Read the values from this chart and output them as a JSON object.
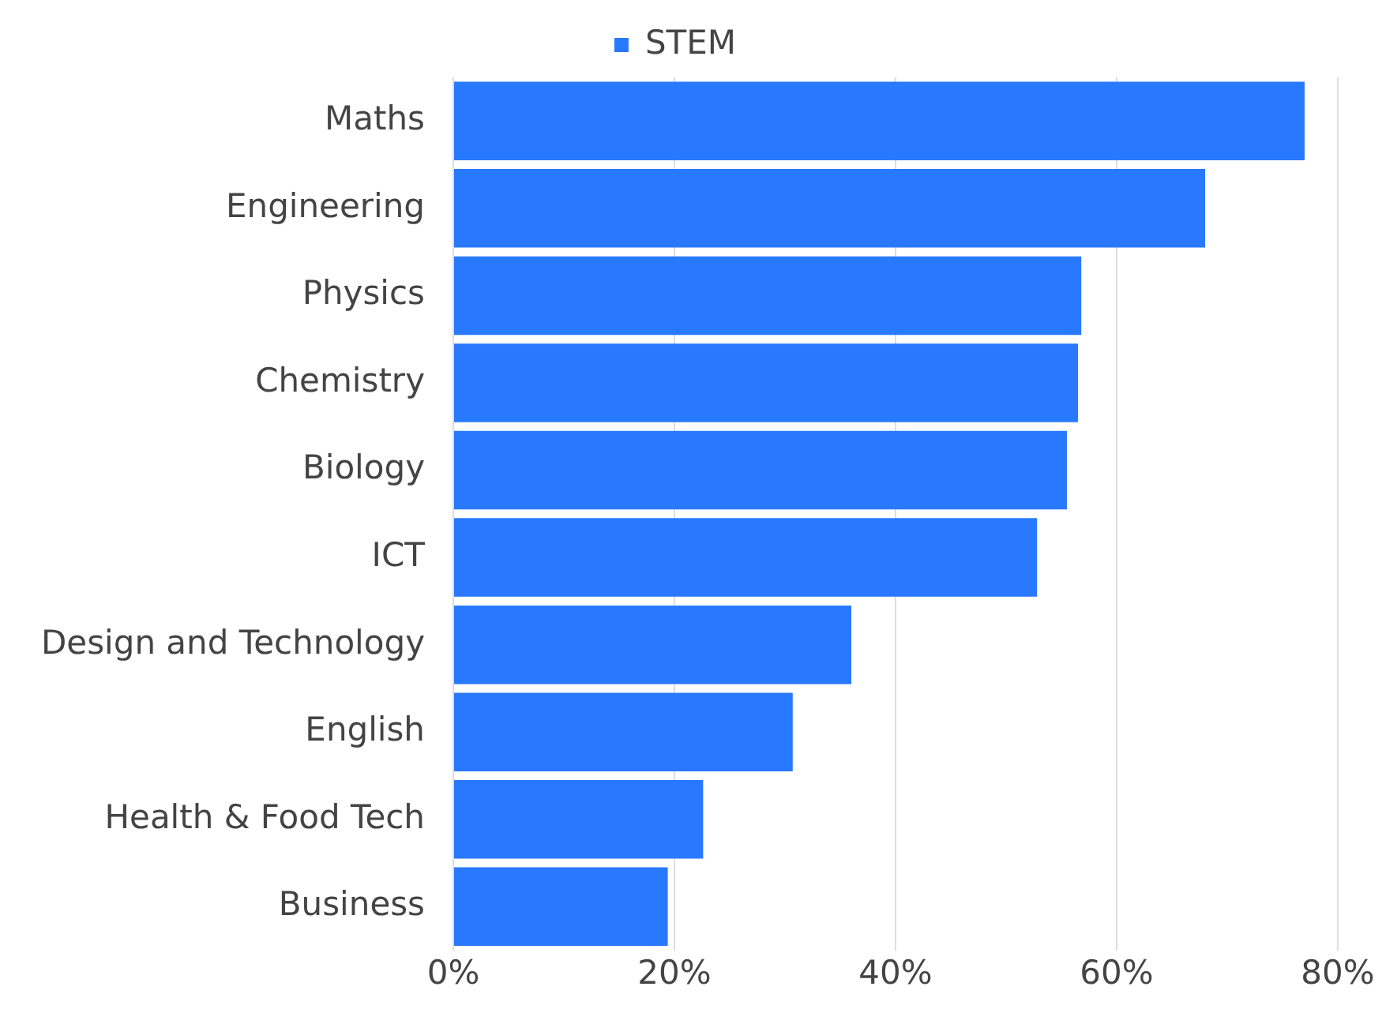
{
  "chart_data": {
    "type": "bar",
    "orientation": "horizontal",
    "legend": "top",
    "grid": "x",
    "categories": [
      "Maths",
      "Engineering",
      "Physics",
      "Chemistry",
      "Biology",
      "ICT",
      "Design and Technology",
      "English",
      "Health & Food Tech",
      "Business"
    ],
    "series": [
      {
        "name": "STEM",
        "color": "#2979ff",
        "values": [
          77,
          68,
          56.8,
          56.5,
          55.5,
          52.8,
          36,
          30.7,
          22.6,
          19.4
        ]
      }
    ],
    "xlim": [
      0,
      80
    ],
    "xticks": [
      {
        "value": 0,
        "label": "0%"
      },
      {
        "value": 20,
        "label": "20%"
      },
      {
        "value": 40,
        "label": "40%"
      },
      {
        "value": 60,
        "label": "60%"
      },
      {
        "value": 80,
        "label": "80%"
      }
    ]
  }
}
